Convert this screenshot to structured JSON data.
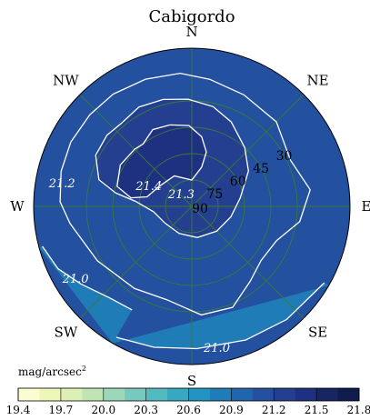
{
  "chart_data": {
    "type": "polar-contour",
    "title": "Cabigordo",
    "directions": [
      {
        "label": "N",
        "azimuth": 0
      },
      {
        "label": "NE",
        "azimuth": 45
      },
      {
        "label": "E",
        "azimuth": 90
      },
      {
        "label": "SE",
        "azimuth": 135
      },
      {
        "label": "S",
        "azimuth": 180
      },
      {
        "label": "SW",
        "azimuth": 225
      },
      {
        "label": "W",
        "azimuth": 270
      },
      {
        "label": "NW",
        "azimuth": 315
      }
    ],
    "altitude_rings": [
      30,
      45,
      60,
      75,
      90
    ],
    "altitude_labels": [
      "30",
      "45",
      "60",
      "75",
      "90"
    ],
    "contours": [
      {
        "level": 21.4,
        "label": "21.4",
        "label_pos": {
          "az": 295,
          "alt": 63
        },
        "points": [
          [
            322,
            45
          ],
          [
            333,
            41
          ],
          [
            345,
            42
          ],
          [
            358,
            44
          ],
          [
            8,
            50
          ],
          [
            15,
            58
          ],
          [
            14,
            67
          ],
          [
            0,
            75
          ],
          [
            330,
            70
          ],
          [
            300,
            68
          ],
          [
            282,
            64
          ],
          [
            278,
            55
          ],
          [
            285,
            46
          ],
          [
            300,
            43
          ],
          [
            315,
            44
          ]
        ]
      },
      {
        "level": 21.3,
        "label": "21.3",
        "label_pos": {
          "az": 318,
          "alt": 81
        },
        "points": [
          [
            320,
            28
          ],
          [
            332,
            26
          ],
          [
            345,
            27
          ],
          [
            358,
            29
          ],
          [
            12,
            32
          ],
          [
            25,
            37
          ],
          [
            42,
            45
          ],
          [
            58,
            52
          ],
          [
            80,
            62
          ],
          [
            105,
            67
          ],
          [
            135,
            70
          ],
          [
            170,
            72
          ],
          [
            205,
            73
          ],
          [
            238,
            72
          ],
          [
            262,
            68
          ],
          [
            275,
            58
          ],
          [
            280,
            46
          ],
          [
            286,
            35
          ],
          [
            298,
            28
          ],
          [
            310,
            27
          ]
        ]
      },
      {
        "level": 21.2,
        "label": "21.2",
        "label_pos": {
          "az": 280,
          "alt": 15
        },
        "points": [
          [
            312,
            12
          ],
          [
            325,
            12
          ],
          [
            340,
            13
          ],
          [
            355,
            14
          ],
          [
            8,
            17
          ],
          [
            25,
            20
          ],
          [
            45,
            22
          ],
          [
            65,
            28
          ],
          [
            82,
            22
          ],
          [
            98,
            28
          ],
          [
            112,
            38
          ],
          [
            128,
            40
          ],
          [
            142,
            36
          ],
          [
            158,
            28
          ],
          [
            175,
            28
          ],
          [
            195,
            35
          ],
          [
            215,
            33
          ],
          [
            240,
            28
          ],
          [
            262,
            20
          ],
          [
            272,
            15
          ],
          [
            285,
            13
          ],
          [
            298,
            12
          ]
        ]
      },
      {
        "level": 21.0,
        "label": "21.0",
        "label_pos": {
          "az": 238,
          "alt": 12
        },
        "points": [
          [
            210,
            22
          ],
          [
            222,
            20
          ],
          [
            235,
            13
          ],
          [
            245,
            6
          ],
          [
            255,
            2
          ]
        ]
      },
      {
        "level": 21.0,
        "label": "21.0",
        "label_pos": {
          "az": 170,
          "alt": 8
        },
        "points": [
          [
            120,
            3
          ],
          [
            140,
            6
          ],
          [
            158,
            8
          ],
          [
            178,
            9
          ],
          [
            195,
            7
          ],
          [
            210,
            4
          ]
        ]
      }
    ],
    "field": {
      "background_value": 21.1,
      "regions": [
        {
          "value": 20.75,
          "points": [
            [
              210,
              22
            ],
            [
              222,
              20
            ],
            [
              235,
              13
            ],
            [
              245,
              6
            ],
            [
              255,
              2
            ],
            [
              255,
              0
            ],
            [
              210,
              0
            ]
          ]
        },
        {
          "value": 20.8,
          "points": [
            [
              120,
              3
            ],
            [
              140,
              6
            ],
            [
              158,
              8
            ],
            [
              178,
              9
            ],
            [
              195,
              7
            ],
            [
              210,
              4
            ],
            [
              210,
              0
            ],
            [
              120,
              0
            ]
          ]
        },
        {
          "value": 21.25,
          "points": [
            [
              320,
              28
            ],
            [
              332,
              26
            ],
            [
              345,
              27
            ],
            [
              358,
              29
            ],
            [
              12,
              32
            ],
            [
              25,
              37
            ],
            [
              42,
              45
            ],
            [
              58,
              52
            ],
            [
              80,
              62
            ],
            [
              105,
              67
            ],
            [
              135,
              70
            ],
            [
              170,
              72
            ],
            [
              205,
              73
            ],
            [
              238,
              72
            ],
            [
              262,
              68
            ],
            [
              275,
              58
            ],
            [
              280,
              46
            ],
            [
              286,
              35
            ],
            [
              298,
              28
            ],
            [
              310,
              27
            ]
          ]
        },
        {
          "value": 21.45,
          "points": [
            [
              322,
              45
            ],
            [
              333,
              41
            ],
            [
              345,
              42
            ],
            [
              358,
              44
            ],
            [
              8,
              50
            ],
            [
              15,
              58
            ],
            [
              14,
              67
            ],
            [
              0,
              75
            ],
            [
              330,
              70
            ],
            [
              300,
              68
            ],
            [
              282,
              64
            ],
            [
              278,
              55
            ],
            [
              285,
              46
            ],
            [
              300,
              43
            ],
            [
              315,
              44
            ]
          ]
        }
      ]
    },
    "colorbar": {
      "label": "mag/arcsec",
      "label_superscript": "2",
      "min": 19.4,
      "max": 21.8,
      "step": 0.15,
      "ticks": [
        "19.4",
        "19.7",
        "20.0",
        "20.3",
        "20.6",
        "20.9",
        "21.2",
        "21.5",
        "21.8"
      ],
      "colors": [
        "#fbfdd0",
        "#eef7b7",
        "#dbf0b2",
        "#c0e5b5",
        "#9dd7b9",
        "#78c9bd",
        "#53bac1",
        "#37a8c1",
        "#2393c1",
        "#1f7cb6",
        "#2066ac",
        "#23509f",
        "#243f90",
        "#1e3080",
        "#172563",
        "#0f1c4d"
      ]
    }
  }
}
